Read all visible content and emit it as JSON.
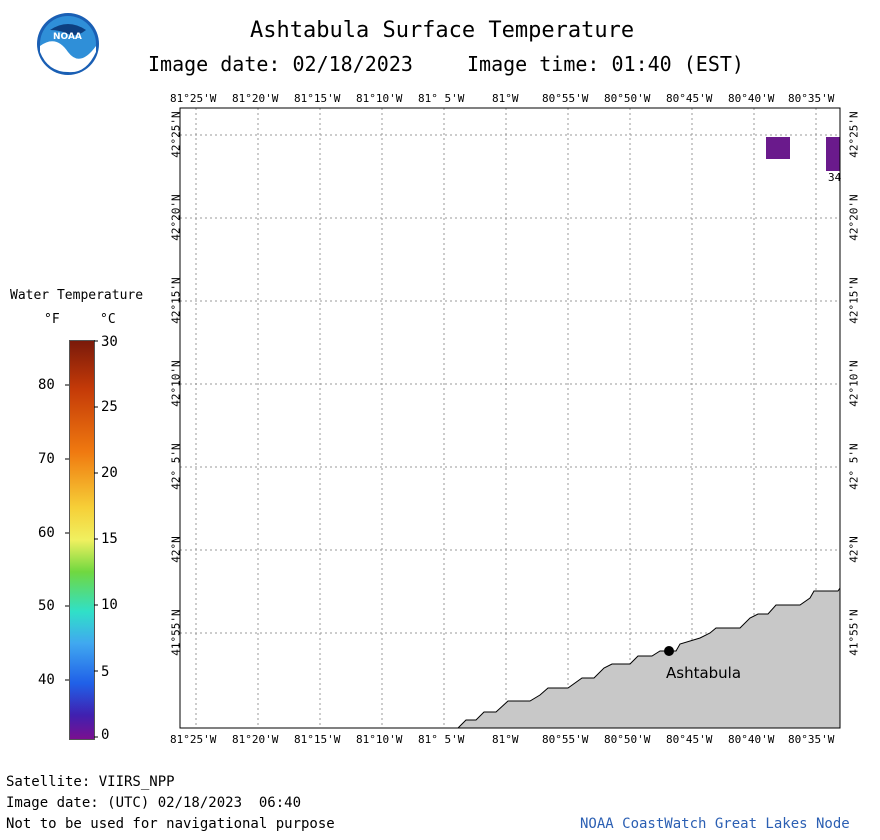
{
  "header": {
    "title": "Ashtabula Surface Temperature",
    "image_date": "Image date: 02/18/2023",
    "image_time": "Image time: 01:40 (EST)"
  },
  "logo": {
    "text": "NOAA"
  },
  "map": {
    "lon_labels": [
      "81°25'W",
      "81°20'W",
      "81°15'W",
      "81°10'W",
      "81° 5'W",
      "81°W",
      "80°55'W",
      "80°50'W",
      "80°45'W",
      "80°40'W",
      "80°35'W"
    ],
    "lat_labels": [
      "42°25'N",
      "42°20'N",
      "42°15'N",
      "42°10'N",
      "42° 5'N",
      "42°N",
      "41°55'N"
    ],
    "city": "Ashtabula",
    "pixel_label": "34",
    "land_color": "#c8c8c8",
    "pixel_color": "#6a1a8c"
  },
  "legend": {
    "title": "Water Temperature",
    "f_label": "°F",
    "c_label": "°C",
    "f_ticks": [
      "80",
      "70",
      "60",
      "50",
      "40"
    ],
    "c_ticks": [
      "30",
      "25",
      "20",
      "15",
      "10",
      "5",
      "0"
    ]
  },
  "footer": {
    "satellite": "Satellite: VIIRS_NPP",
    "utc_date": "Image date: (UTC) 02/18/2023  06:40",
    "warning": "Not to be used for navigational purpose",
    "credit": "NOAA CoastWatch Great Lakes Node"
  }
}
